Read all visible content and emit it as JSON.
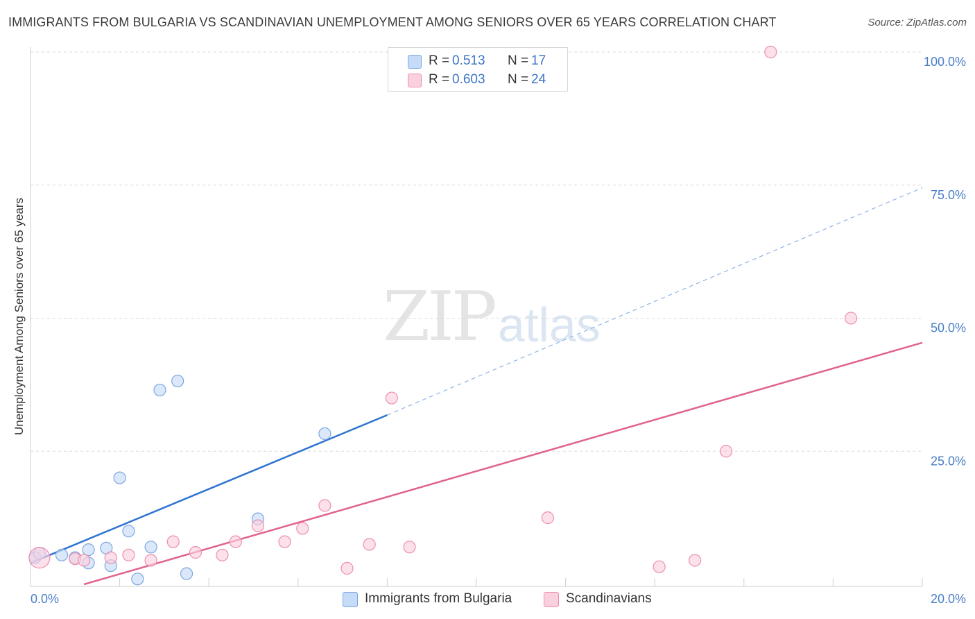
{
  "title": "IMMIGRANTS FROM BULGARIA VS SCANDINAVIAN UNEMPLOYMENT AMONG SENIORS OVER 65 YEARS CORRELATION CHART",
  "source": "Source: ZipAtlas.com",
  "watermark": {
    "zip": "ZIP",
    "atlas": "atlas"
  },
  "legend": {
    "rows": [
      {
        "r_label": "R =",
        "r_value": "0.513",
        "n_label": "N =",
        "n_value": "17",
        "color": "#b9d1f3",
        "border": "#7ea6e0"
      },
      {
        "r_label": "R =",
        "r_value": "0.603",
        "n_label": "N =",
        "n_value": "24",
        "color": "#f9c6d6",
        "border": "#eb8fae"
      }
    ]
  },
  "bottom_legend": [
    {
      "label": "Immigrants from Bulgaria",
      "color": "#b9d1f3",
      "border": "#7ea6e0"
    },
    {
      "label": "Scandinavians",
      "color": "#f9c6d6",
      "border": "#eb8fae"
    }
  ],
  "chart_data": {
    "type": "scatter",
    "title": "IMMIGRANTS FROM BULGARIA VS SCANDINAVIAN UNEMPLOYMENT AMONG SENIORS OVER 65 YEARS CORRELATION CHART",
    "xlabel": "",
    "ylabel": "Unemployment Among Seniors over 65 years",
    "xlim": [
      0,
      20
    ],
    "ylim": [
      0,
      100
    ],
    "x_tick_labels": [
      "0.0%",
      "20.0%"
    ],
    "y_ticks": [
      25,
      50,
      75,
      100
    ],
    "y_tick_labels": [
      "25.0%",
      "50.0%",
      "75.0%",
      "100.0%"
    ],
    "series": [
      {
        "name": "Immigrants from Bulgaria",
        "color": "#7ea6e0",
        "fill": "#c6dbf7",
        "line_color": "#2f74d0",
        "points": [
          [
            0.1,
            5.0
          ],
          [
            0.7,
            5.5
          ],
          [
            1.0,
            5.0
          ],
          [
            1.3,
            4.0
          ],
          [
            1.3,
            6.5
          ],
          [
            1.7,
            6.8
          ],
          [
            1.8,
            3.5
          ],
          [
            2.0,
            20.0
          ],
          [
            2.2,
            10.0
          ],
          [
            2.4,
            1.0
          ],
          [
            2.7,
            7.0
          ],
          [
            2.9,
            36.5
          ],
          [
            3.3,
            38.2
          ],
          [
            3.5,
            2.0
          ],
          [
            5.1,
            12.3
          ],
          [
            6.6,
            28.3
          ],
          [
            0.2,
            5.8
          ]
        ],
        "trend": {
          "x0": 0.0,
          "y0": 4.0,
          "x1": 8.0,
          "y1": 31.8,
          "x2": 20.0,
          "y2": 74.5
        }
      },
      {
        "name": "Scandinavians",
        "color": "#eb8fae",
        "fill": "#fbd0de",
        "line_color": "#e0638f",
        "points": [
          [
            0.2,
            5.0
          ],
          [
            1.0,
            4.8
          ],
          [
            1.2,
            4.5
          ],
          [
            1.8,
            5.0
          ],
          [
            2.2,
            5.5
          ],
          [
            2.7,
            4.5
          ],
          [
            3.2,
            8.0
          ],
          [
            3.7,
            6.0
          ],
          [
            4.3,
            5.5
          ],
          [
            4.6,
            8.0
          ],
          [
            5.1,
            11.0
          ],
          [
            5.7,
            8.0
          ],
          [
            6.1,
            10.5
          ],
          [
            6.6,
            14.8
          ],
          [
            7.1,
            3.0
          ],
          [
            7.6,
            7.5
          ],
          [
            8.1,
            35.0
          ],
          [
            8.5,
            7.0
          ],
          [
            11.6,
            12.5
          ],
          [
            14.1,
            3.3
          ],
          [
            14.9,
            4.5
          ],
          [
            15.6,
            25.0
          ],
          [
            16.6,
            100.0
          ],
          [
            18.4,
            50.0
          ]
        ],
        "trend": {
          "x0": 1.2,
          "y0": 0.0,
          "x1": 20.0,
          "y1": 45.4
        }
      }
    ]
  }
}
